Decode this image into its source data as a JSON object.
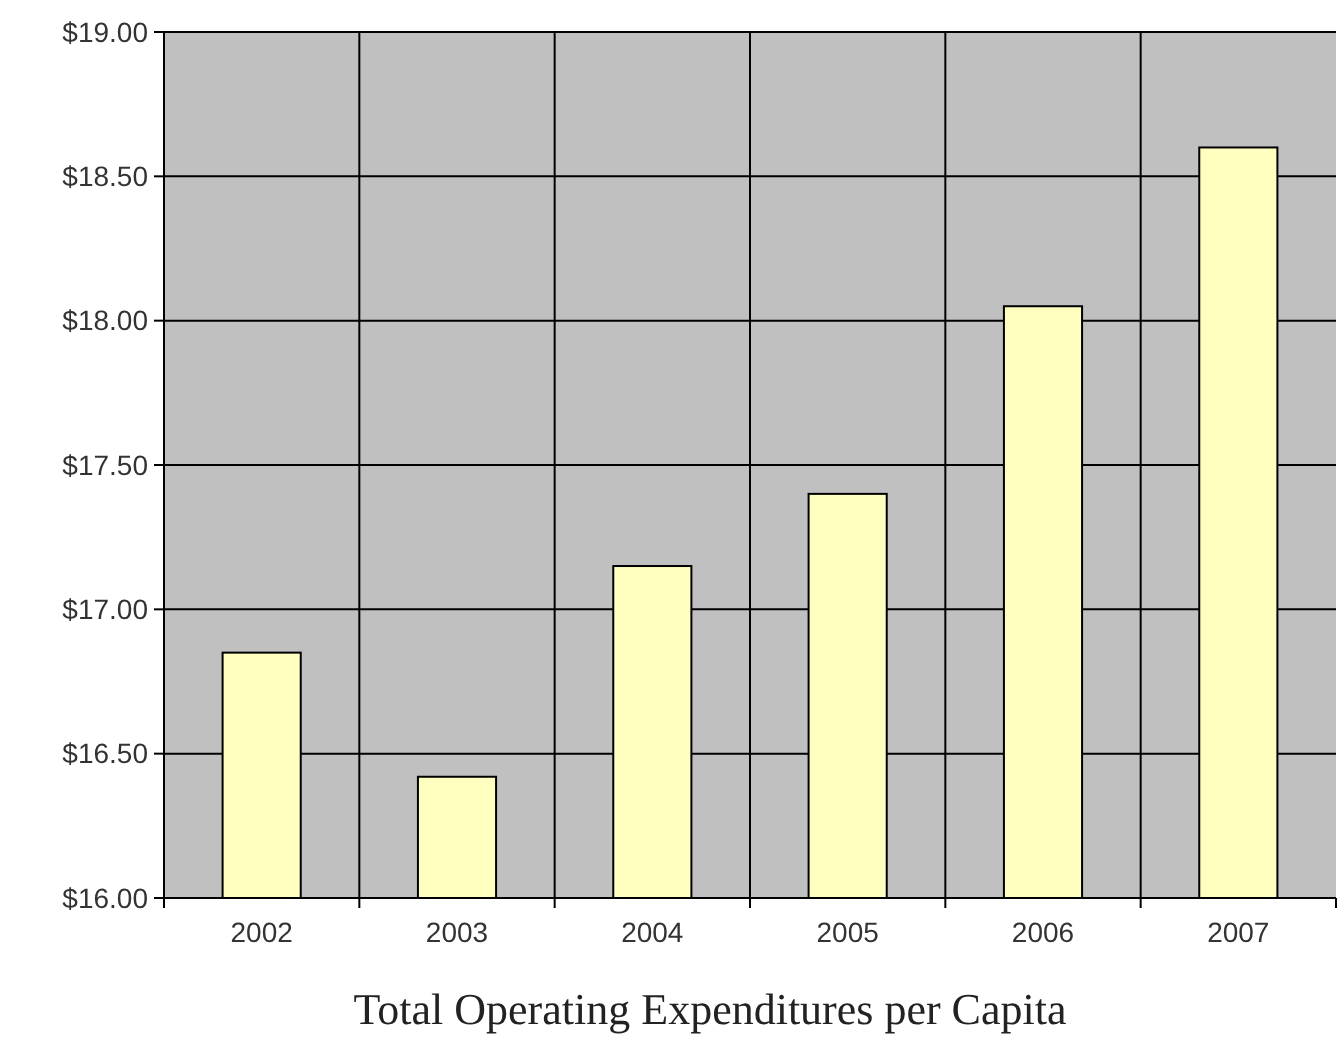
{
  "chart_data": {
    "type": "bar",
    "title": "Total Operating Expenditures per Capita",
    "categories": [
      "2002",
      "2003",
      "2004",
      "2005",
      "2006",
      "2007"
    ],
    "values": [
      16.85,
      16.42,
      17.15,
      17.4,
      18.05,
      18.6
    ],
    "color": "#ffffc0",
    "ylim": [
      16,
      19
    ],
    "yticks": [
      {
        "value": 16,
        "label": "$16.00"
      },
      {
        "value": 16.5,
        "label": "$16.50"
      },
      {
        "value": 17,
        "label": "$17.00"
      },
      {
        "value": 17.5,
        "label": "$17.50"
      },
      {
        "value": 18,
        "label": "$18.00"
      },
      {
        "value": 18.5,
        "label": "$18.50"
      },
      {
        "value": 19,
        "label": "$19.00"
      }
    ],
    "grid": true
  }
}
